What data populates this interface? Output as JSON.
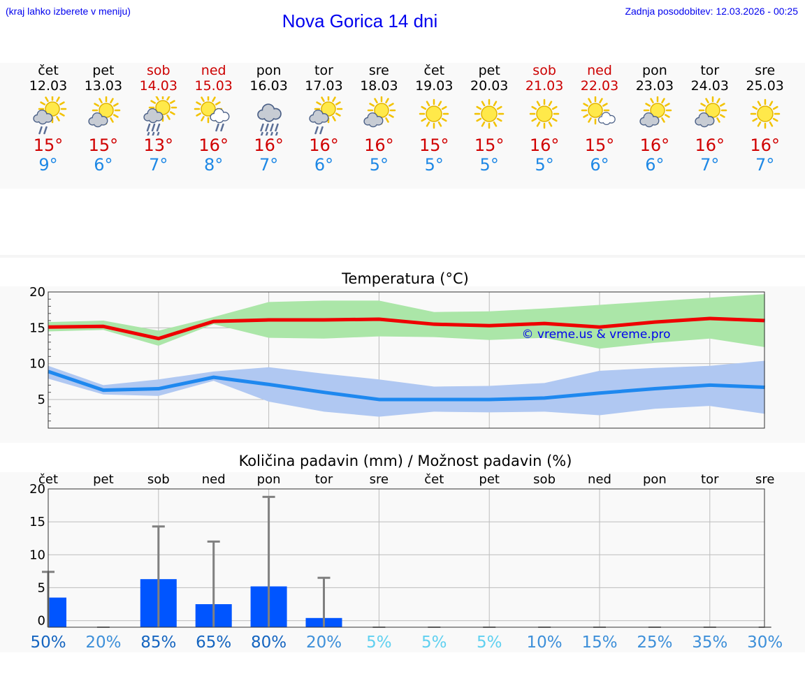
{
  "header": {
    "hint": "(kraj lahko izberete v meniju)",
    "title": "Nova Gorica 14 dni",
    "updated": "Zadnja posodobitev: 12.03.2026 - 00:25"
  },
  "days": [
    {
      "name": "čet",
      "date": "12.03",
      "icon": "sun-cloud-rain-icon",
      "tmax": "15°",
      "tmin": "9°",
      "weekend": false
    },
    {
      "name": "pet",
      "date": "13.03",
      "icon": "sun-cloud-icon",
      "tmax": "15°",
      "tmin": "6°",
      "weekend": false
    },
    {
      "name": "sob",
      "date": "14.03",
      "icon": "sun-cloud-heavy-rain-icon",
      "tmax": "13°",
      "tmin": "7°",
      "weekend": true
    },
    {
      "name": "ned",
      "date": "15.03",
      "icon": "sun-white-cloud-rain-icon",
      "tmax": "16°",
      "tmin": "8°",
      "weekend": true
    },
    {
      "name": "pon",
      "date": "16.03",
      "icon": "cloud-heavy-rain-icon",
      "tmax": "16°",
      "tmin": "7°",
      "weekend": false
    },
    {
      "name": "tor",
      "date": "17.03",
      "icon": "sun-cloud-rain-icon",
      "tmax": "16°",
      "tmin": "6°",
      "weekend": false
    },
    {
      "name": "sre",
      "date": "18.03",
      "icon": "sun-cloud-icon",
      "tmax": "16°",
      "tmin": "5°",
      "weekend": false
    },
    {
      "name": "čet",
      "date": "19.03",
      "icon": "sun-icon",
      "tmax": "15°",
      "tmin": "5°",
      "weekend": false
    },
    {
      "name": "pet",
      "date": "20.03",
      "icon": "sun-icon",
      "tmax": "15°",
      "tmin": "5°",
      "weekend": false
    },
    {
      "name": "sob",
      "date": "21.03",
      "icon": "sun-icon",
      "tmax": "16°",
      "tmin": "5°",
      "weekend": true
    },
    {
      "name": "ned",
      "date": "22.03",
      "icon": "sun-white-cloud-icon",
      "tmax": "15°",
      "tmin": "6°",
      "weekend": true
    },
    {
      "name": "pon",
      "date": "23.03",
      "icon": "sun-cloud-icon",
      "tmax": "16°",
      "tmin": "6°",
      "weekend": false
    },
    {
      "name": "tor",
      "date": "24.03",
      "icon": "sun-cloud-icon",
      "tmax": "16°",
      "tmin": "7°",
      "weekend": false
    },
    {
      "name": "sre",
      "date": "25.03",
      "icon": "sun-icon",
      "tmax": "16°",
      "tmin": "7°",
      "weekend": false
    }
  ],
  "colors": {
    "max_line": "#ee0000",
    "max_band": "#abe6a8",
    "min_line": "#1e88ef",
    "min_band": "#b0c8f2",
    "bar": "#0055ff",
    "whisker": "#808080",
    "weekend": "#cc0000",
    "link": "#0000ee"
  },
  "chart_data": [
    {
      "type": "line",
      "title": "Temperatura (°C)",
      "watermark": "© vreme.us & vreme.pro",
      "ylim": [
        1,
        20
      ],
      "yticks": [
        5,
        10,
        15,
        20
      ],
      "x": [
        0,
        1,
        2,
        3,
        4,
        5,
        6,
        7,
        8,
        9,
        10,
        11,
        12,
        13
      ],
      "series": [
        {
          "name": "max",
          "values": [
            15.1,
            15.2,
            13.5,
            15.9,
            16.1,
            16.1,
            16.2,
            15.5,
            15.3,
            15.6,
            15.1,
            15.8,
            16.3,
            16.0
          ],
          "band_low": [
            14.5,
            14.7,
            12.5,
            15.5,
            13.6,
            13.5,
            13.8,
            13.7,
            13.3,
            13.6,
            12.1,
            12.9,
            13.5,
            12.3
          ],
          "band_high": [
            15.8,
            16.0,
            14.6,
            16.5,
            18.6,
            18.8,
            18.8,
            17.2,
            17.3,
            17.7,
            18.2,
            18.7,
            19.2,
            19.7
          ]
        },
        {
          "name": "min",
          "values": [
            8.9,
            6.3,
            6.5,
            8.1,
            7.1,
            6.0,
            5.0,
            5.0,
            5.0,
            5.2,
            5.9,
            6.5,
            7.0,
            6.7
          ],
          "band_low": [
            7.9,
            5.7,
            5.5,
            7.6,
            4.7,
            3.3,
            2.6,
            3.3,
            3.2,
            3.3,
            2.8,
            3.7,
            4.1,
            3.0
          ],
          "band_high": [
            9.7,
            7.0,
            7.8,
            8.9,
            9.5,
            8.6,
            7.8,
            6.8,
            6.9,
            7.3,
            9.0,
            9.4,
            9.7,
            10.4
          ]
        }
      ]
    },
    {
      "type": "bar",
      "title": "Količina padavin (mm) / Možnost padavin (%)",
      "categories": [
        "čet",
        "pet",
        "sob",
        "ned",
        "pon",
        "tor",
        "sre",
        "čet",
        "pet",
        "sob",
        "ned",
        "pon",
        "tor",
        "sre"
      ],
      "ylim": [
        -1,
        20
      ],
      "yticks": [
        0,
        5,
        10,
        15,
        20
      ],
      "values": [
        3.5,
        0,
        6.3,
        2.5,
        5.2,
        0.4,
        0,
        0,
        0,
        0,
        0,
        0,
        0,
        0
      ],
      "max_values": [
        7.4,
        0,
        14.3,
        12.0,
        18.8,
        6.5,
        0,
        0,
        0,
        0,
        0,
        0,
        0,
        0
      ],
      "probability": [
        "50%",
        "20%",
        "85%",
        "65%",
        "80%",
        "20%",
        "5%",
        "5%",
        "5%",
        "10%",
        "15%",
        "25%",
        "35%",
        "30%"
      ],
      "probability_colors": [
        "#1565c0",
        "#3d8fd9",
        "#1565c0",
        "#1565c0",
        "#1565c0",
        "#3d8fd9",
        "#5fd0f0",
        "#5fd0f0",
        "#5fd0f0",
        "#3d8fd9",
        "#3d8fd9",
        "#3d8fd9",
        "#3d8fd9",
        "#3d8fd9"
      ]
    }
  ]
}
